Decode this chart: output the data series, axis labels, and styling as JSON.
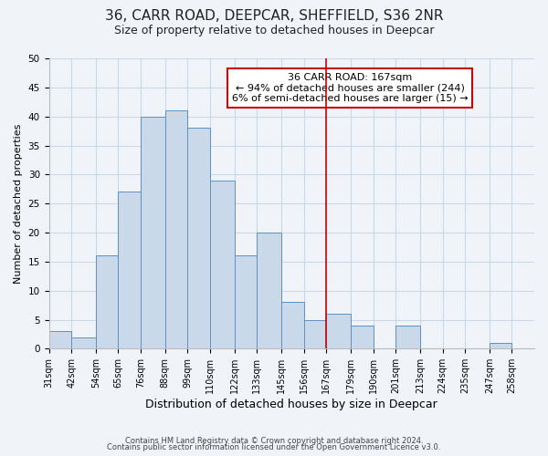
{
  "title": "36, CARR ROAD, DEEPCAR, SHEFFIELD, S36 2NR",
  "subtitle": "Size of property relative to detached houses in Deepcar",
  "xlabel": "Distribution of detached houses by size in Deepcar",
  "ylabel": "Number of detached properties",
  "footer_line1": "Contains HM Land Registry data © Crown copyright and database right 2024.",
  "footer_line2": "Contains public sector information licensed under the Open Government Licence v3.0.",
  "bin_labels": [
    "31sqm",
    "42sqm",
    "54sqm",
    "65sqm",
    "76sqm",
    "88sqm",
    "99sqm",
    "110sqm",
    "122sqm",
    "133sqm",
    "145sqm",
    "156sqm",
    "167sqm",
    "179sqm",
    "190sqm",
    "201sqm",
    "213sqm",
    "224sqm",
    "235sqm",
    "247sqm",
    "258sqm"
  ],
  "bar_heights": [
    3,
    2,
    16,
    27,
    40,
    41,
    38,
    29,
    16,
    20,
    8,
    5,
    6,
    4,
    0,
    4,
    0,
    0,
    0,
    1,
    0
  ],
  "bar_color": "#c9d9ea",
  "bar_edge_color": "#6090c0",
  "vline_x_index": 12,
  "vline_color": "#cc0000",
  "ylim": [
    0,
    50
  ],
  "yticks": [
    0,
    5,
    10,
    15,
    20,
    25,
    30,
    35,
    40,
    45,
    50
  ],
  "annotation_title": "36 CARR ROAD: 167sqm",
  "annotation_line1": "← 94% of detached houses are smaller (244)",
  "annotation_line2": "6% of semi-detached houses are larger (15) →",
  "annotation_box_color": "#ffffff",
  "annotation_box_edge": "#cc0000",
  "bin_edges": [
    31,
    42,
    54,
    65,
    76,
    88,
    99,
    110,
    122,
    133,
    145,
    156,
    167,
    179,
    190,
    201,
    213,
    224,
    235,
    247,
    258
  ],
  "bg_color": "#f0f4f8",
  "grid_color": "#c8d8e8",
  "title_fontsize": 11,
  "subtitle_fontsize": 9,
  "ylabel_fontsize": 8,
  "xlabel_fontsize": 9,
  "tick_fontsize": 7,
  "footer_fontsize": 6,
  "annot_fontsize": 8
}
